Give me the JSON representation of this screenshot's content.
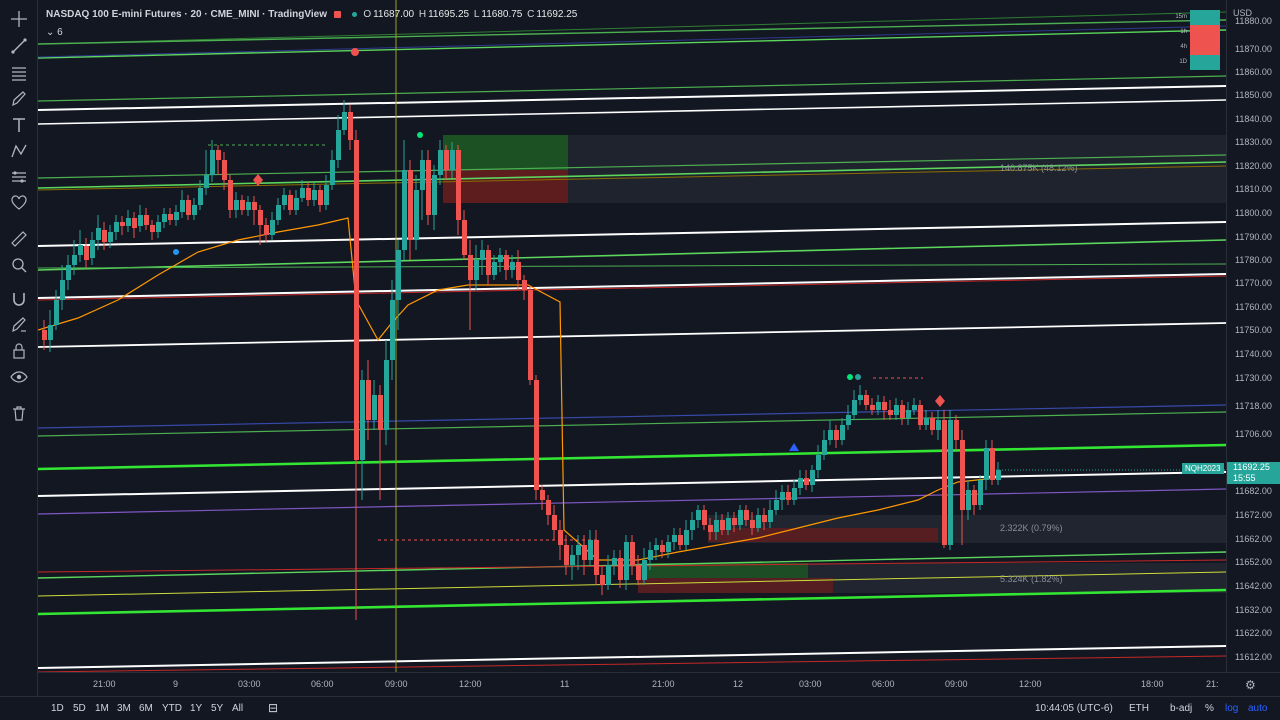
{
  "legend": {
    "title": "NASDAQ 100 E-mini Futures · 20 · CME_MINI · TradingView",
    "ohlc": [
      {
        "k": "O",
        "v": "11687.00"
      },
      {
        "k": "H",
        "v": "11695.25"
      },
      {
        "k": "L",
        "v": "11680.75"
      },
      {
        "k": "C",
        "v": "11692.25"
      }
    ],
    "indicator_count": "6"
  },
  "price_axis": {
    "currency": "USD",
    "labels": [
      "11880.00",
      "11870.00",
      "11860.00",
      "11850.00",
      "11840.00",
      "11830.00",
      "11820.00",
      "11810.00",
      "11800.00",
      "11790.00",
      "11780.00",
      "11770.00",
      "11760.00",
      "11750.00",
      "11740.00",
      "11730.00",
      "11718.00",
      "11706.00",
      "11682.00",
      "11672.00",
      "11662.00",
      "11652.00",
      "11642.00",
      "11632.00",
      "11622.00",
      "11612.00"
    ],
    "current_price": "11692.25",
    "countdown": "15:55",
    "symbol_tag": "NQH2023"
  },
  "time_axis": {
    "labels": [
      "21:00",
      "9",
      "03:00",
      "06:00",
      "09:00",
      "12:00",
      "11",
      "21:00",
      "12",
      "03:00",
      "06:00",
      "09:00",
      "12:00",
      "18:00",
      "21:"
    ]
  },
  "zones": {
    "upper_label": "140.875K (48.12%)",
    "mid_label": "2.322K (0.79%)",
    "lower_label": "5.324K (1.82%)"
  },
  "tf_table": {
    "rows": [
      {
        "tf": "15m",
        "color": "#26a69a"
      },
      {
        "tf": "1h",
        "color": "#ef5350"
      },
      {
        "tf": "4h",
        "color": "#ef5350"
      },
      {
        "tf": "1D",
        "color": "#26a69a"
      }
    ]
  },
  "bottom_bar": {
    "ranges": [
      "1D",
      "5D",
      "1M",
      "3M",
      "6M",
      "YTD",
      "1Y",
      "5Y",
      "All"
    ],
    "clock": "10:44:05 (UTC-6)",
    "session": "ETH",
    "adjust": "b-adj",
    "percent": "%",
    "log": "log",
    "auto": "auto"
  },
  "colors": {
    "up": "#26a69a",
    "down": "#ef5350",
    "background": "#131722"
  }
}
